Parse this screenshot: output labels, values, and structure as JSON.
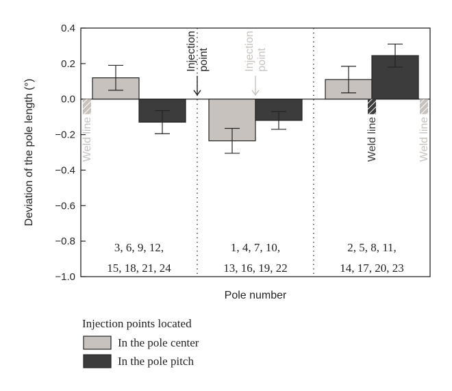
{
  "chart_data": {
    "type": "bar",
    "title": "",
    "xlabel": "Pole number",
    "ylabel": "Deviation of the pole length (°)",
    "ylim": [
      -1.0,
      0.4
    ],
    "yticks": [
      "0.4",
      "0.2",
      "0.0",
      "−0.2",
      "−0.4",
      "−0.6",
      "−0.8",
      "−1.0"
    ],
    "ytick_values": [
      0.4,
      0.2,
      0.0,
      -0.2,
      -0.4,
      -0.6,
      -0.8,
      -1.0
    ],
    "grid": false,
    "categories": [
      {
        "line1": "3, 6, 9, 12,",
        "line2": "15, 18, 21, 24"
      },
      {
        "line1": "1, 4, 7, 10,",
        "line2": "13, 16, 19, 22"
      },
      {
        "line1": "2, 5, 8, 11,",
        "line2": "14, 17, 20, 23"
      }
    ],
    "series": [
      {
        "name": "In the pole center",
        "color": "#c8c2be",
        "values": [
          0.12,
          -0.235,
          0.11
        ],
        "err": [
          0.07,
          0.07,
          0.075
        ]
      },
      {
        "name": "In the pole pitch",
        "color": "#3c3c3c",
        "values": [
          -0.13,
          -0.12,
          0.245
        ],
        "err": [
          0.065,
          0.05,
          0.065
        ]
      }
    ],
    "legend": {
      "title": "Injection points located",
      "placement": "bottom"
    },
    "annotations": [
      {
        "kind": "injection",
        "line1": "Injection",
        "line2": "point",
        "color": "#222222",
        "group": 0,
        "side": "right"
      },
      {
        "kind": "injection",
        "line1": "Injection",
        "line2": "point",
        "color": "#c8c2be",
        "group": 1,
        "side": "center"
      },
      {
        "kind": "weld",
        "text": "Weld line",
        "color": "#c8c2be",
        "group": 0,
        "side": "left"
      },
      {
        "kind": "weld",
        "text": "Weld line",
        "color": "#3c3c3c",
        "group": 2,
        "side": "center"
      },
      {
        "kind": "weld",
        "text": "Weld line",
        "color": "#c8c2be",
        "group": 2,
        "side": "right"
      }
    ]
  }
}
